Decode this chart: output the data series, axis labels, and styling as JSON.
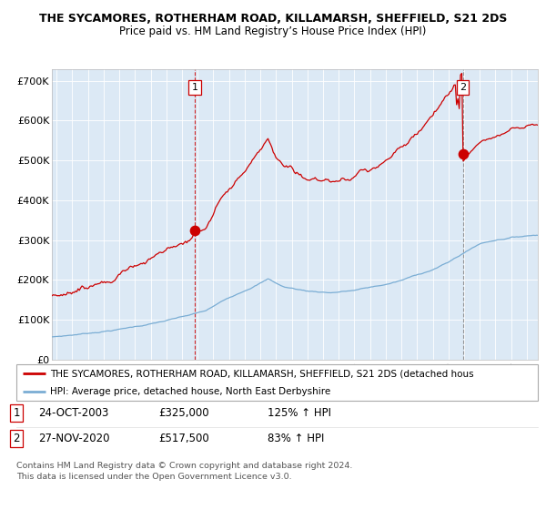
{
  "title1": "THE SYCAMORES, ROTHERHAM ROAD, KILLAMARSH, SHEFFIELD, S21 2DS",
  "title2": "Price paid vs. HM Land Registry’s House Price Index (HPI)",
  "background_color": "#dce9f5",
  "red_line_color": "#cc0000",
  "blue_line_color": "#7aadd4",
  "sale1_date": 2003.82,
  "sale1_price": 325000,
  "sale2_date": 2020.92,
  "sale2_price": 517500,
  "legend_line1": "THE SYCAMORES, ROTHERHAM ROAD, KILLAMARSH, SHEFFIELD, S21 2DS (detached hous",
  "legend_line2": "HPI: Average price, detached house, North East Derbyshire",
  "sale1_text": "24-OCT-2003",
  "sale1_amount": "£325,000",
  "sale1_hpi": "125% ↑ HPI",
  "sale2_text": "27-NOV-2020",
  "sale2_amount": "£517,500",
  "sale2_hpi": "83% ↑ HPI",
  "footer": "Contains HM Land Registry data © Crown copyright and database right 2024.\nThis data is licensed under the Open Government Licence v3.0.",
  "ylim": [
    0,
    730000
  ],
  "xlim_start": 1994.7,
  "xlim_end": 2025.7
}
